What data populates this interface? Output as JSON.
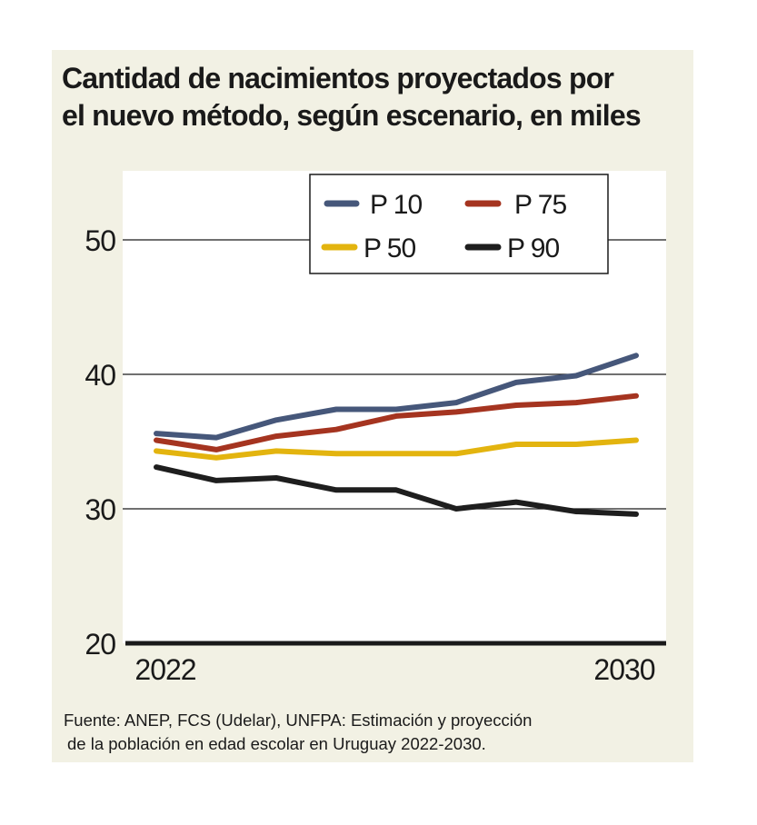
{
  "title_lines": [
    "Cantidad de nacimientos proyectados por",
    "el nuevo método, según escenario, en miles"
  ],
  "source_lines": [
    "Fuente: ANEP, FCS (Udelar), UNFPA: Estimación y proyección",
    "de la población en edad escolar en Uruguay 2022-2030."
  ],
  "colors": {
    "background": "#f2f1e4",
    "plot_area": "#ffffff",
    "P 10": "#46577a",
    "P 75": "#a53420",
    "P 50": "#e3b40f",
    "P 90": "#1e1e1e"
  },
  "chart_data": {
    "type": "line",
    "title": "Cantidad de nacimientos proyectados por el nuevo método, según escenario, en miles",
    "xlabel": "",
    "ylabel": "",
    "x": [
      2022,
      2023,
      2024,
      2025,
      2026,
      2027,
      2028,
      2029,
      2030
    ],
    "x_tick_labels": [
      {
        "x": 2022,
        "label": "2022"
      },
      {
        "x": 2030,
        "label": "2030"
      }
    ],
    "y_ticks": [
      20,
      30,
      40,
      50
    ],
    "y_tick_labels": [
      "20",
      "30",
      "40",
      "50"
    ],
    "ylim": [
      20,
      55
    ],
    "grid": "horizontal",
    "legend_position": "top-right",
    "legend_order": [
      "P 10",
      "P 75",
      "P 50",
      "P 90"
    ],
    "series": [
      {
        "name": "P 10",
        "values": [
          35.6,
          35.3,
          36.6,
          37.4,
          37.4,
          37.9,
          39.4,
          39.9,
          41.4
        ]
      },
      {
        "name": "P 75",
        "values": [
          35.1,
          34.4,
          35.4,
          35.9,
          36.9,
          37.2,
          37.7,
          37.9,
          38.4
        ]
      },
      {
        "name": "P 50",
        "values": [
          34.3,
          33.8,
          34.3,
          34.1,
          34.1,
          34.1,
          34.8,
          34.8,
          35.1
        ]
      },
      {
        "name": "P 90",
        "values": [
          33.1,
          32.1,
          32.3,
          31.4,
          31.4,
          30.0,
          30.5,
          29.8,
          29.6
        ]
      }
    ]
  }
}
